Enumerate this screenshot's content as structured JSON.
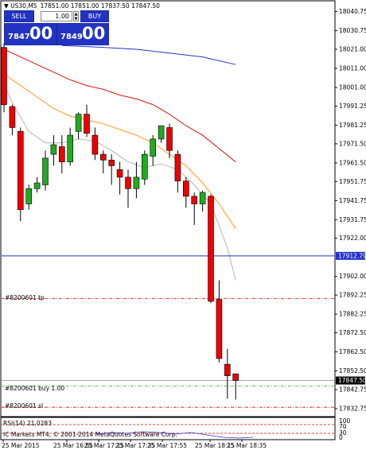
{
  "header": {
    "symbol": "US30,M5",
    "ohlc": "17851.00 17851.00 17837.50 17847.50"
  },
  "one_click": {
    "sell_label": "SELL",
    "buy_label": "BUY",
    "lot": "1.00",
    "sell_prefix": "7847",
    "sell_big": "00",
    "buy_prefix": "7849",
    "buy_big": "00"
  },
  "price_axis": {
    "labels": [
      "18040.75",
      "18030.75",
      "18021.00",
      "18011.00",
      "18001.00",
      "17991.25",
      "17981.25",
      "17971.50",
      "17961.50",
      "17951.75",
      "17941.75",
      "17931.75",
      "17922.00",
      "17902.00",
      "17892.25",
      "17882.25",
      "17872.50",
      "17862.50",
      "17852.50",
      "17842.75",
      "17832.75"
    ],
    "hline_label": "17912.79",
    "current_price": "17847.50"
  },
  "time_axis": {
    "labels": [
      "25 Mar 2015",
      "25 Mar 16:55",
      "25 Mar 17:15",
      "25 Mar 17:35",
      "25 Mar 17:55",
      "25 Mar 18:15",
      "25 Mar 18:35"
    ]
  },
  "orders": {
    "tp_label": "#8200601 tp",
    "buy_label": "#8200601 buy 1.00",
    "sl_label": "#8200601 sl"
  },
  "indicator": {
    "rsi_label": "RSI(14) 21.0283",
    "scale_top": "100",
    "scale_70": "70",
    "scale_30": "30",
    "scale_bottom": "0",
    "copyright": "IC Markets MT4, © 2001-2014 MetaQuotes Software Corp."
  },
  "colors": {
    "bull": "#22aa22",
    "bear": "#ee0000",
    "ma_red": "#dd1111",
    "ma_orange": "#ff9922",
    "ma_gray": "#b4b4b4",
    "ma_blue": "#2233cc",
    "hline": "#2233cc"
  },
  "chart_data": {
    "type": "candlestick",
    "candles": [
      {
        "o": 18022,
        "h": 18024,
        "c": 17992,
        "l": 17988
      },
      {
        "o": 17991,
        "h": 17992,
        "c": 17980,
        "l": 17976
      },
      {
        "o": 17978,
        "h": 17980,
        "c": 17937,
        "l": 17931
      },
      {
        "o": 17940,
        "h": 17950,
        "c": 17948,
        "l": 17937
      },
      {
        "o": 17948,
        "h": 17954,
        "c": 17951,
        "l": 17946
      },
      {
        "o": 17950,
        "h": 17968,
        "c": 17964,
        "l": 17947
      },
      {
        "o": 17966,
        "h": 17976,
        "c": 17971,
        "l": 17960
      },
      {
        "o": 17970,
        "h": 17976,
        "c": 17962,
        "l": 17956
      },
      {
        "o": 17962,
        "h": 17980,
        "c": 17976,
        "l": 17960
      },
      {
        "o": 17978,
        "h": 17988,
        "c": 17987,
        "l": 17974
      },
      {
        "o": 17987,
        "h": 17992,
        "c": 17977,
        "l": 17975
      },
      {
        "o": 17976,
        "h": 17980,
        "c": 17966,
        "l": 17963
      },
      {
        "o": 17966,
        "h": 17968,
        "c": 17963,
        "l": 17956
      },
      {
        "o": 17963,
        "h": 17966,
        "c": 17960,
        "l": 17950
      },
      {
        "o": 17958,
        "h": 17962,
        "c": 17954,
        "l": 17945
      },
      {
        "o": 17954,
        "h": 17958,
        "c": 17948,
        "l": 17938
      },
      {
        "o": 17948,
        "h": 17962,
        "c": 17954,
        "l": 17943
      },
      {
        "o": 17953,
        "h": 17968,
        "c": 17966,
        "l": 17950
      },
      {
        "o": 17965,
        "h": 17976,
        "c": 17974,
        "l": 17960
      },
      {
        "o": 17974,
        "h": 17980,
        "c": 17981,
        "l": 17972
      },
      {
        "o": 17980,
        "h": 17982,
        "c": 17968,
        "l": 17964
      },
      {
        "o": 17966,
        "h": 17968,
        "c": 17952,
        "l": 17946
      },
      {
        "o": 17952,
        "h": 17954,
        "c": 17944,
        "l": 17938
      },
      {
        "o": 17944,
        "h": 17946,
        "c": 17940,
        "l": 17929
      },
      {
        "o": 17940,
        "h": 17947,
        "c": 17946,
        "l": 17936
      },
      {
        "o": 17944,
        "h": 17945,
        "c": 17889,
        "l": 17888
      },
      {
        "o": 17890,
        "h": 17900,
        "c": 17859,
        "l": 17857
      },
      {
        "o": 17856,
        "h": 17864,
        "c": 17850,
        "l": 17838
      },
      {
        "o": 17851,
        "h": 17851,
        "c": 17847.5,
        "l": 17837.5
      }
    ],
    "ma_red": [
      [
        0,
        18021
      ],
      [
        2,
        18017
      ],
      [
        4,
        18013
      ],
      [
        6,
        18009
      ],
      [
        8,
        18005
      ],
      [
        10,
        18002
      ],
      [
        12,
        18000
      ],
      [
        14,
        17997
      ],
      [
        16,
        17995
      ],
      [
        18,
        17992
      ],
      [
        20,
        17987
      ],
      [
        22,
        17981
      ],
      [
        24,
        17976
      ],
      [
        26,
        17969
      ],
      [
        28,
        17962
      ]
    ],
    "ma_orange": [
      [
        0,
        18008
      ],
      [
        2,
        18002
      ],
      [
        4,
        17996
      ],
      [
        6,
        17990
      ],
      [
        8,
        17986
      ],
      [
        10,
        17984
      ],
      [
        12,
        17982
      ],
      [
        14,
        17979
      ],
      [
        16,
        17976
      ],
      [
        18,
        17972
      ],
      [
        20,
        17966
      ],
      [
        22,
        17960
      ],
      [
        24,
        17951
      ],
      [
        26,
        17940
      ],
      [
        28,
        17927
      ]
    ],
    "ma_gray": [
      [
        0,
        18003
      ],
      [
        1,
        17993
      ],
      [
        3,
        17978
      ],
      [
        5,
        17972
      ],
      [
        7,
        17972
      ],
      [
        9,
        17974
      ],
      [
        11,
        17973
      ],
      [
        13,
        17968
      ],
      [
        15,
        17962
      ],
      [
        17,
        17959
      ],
      [
        19,
        17961
      ],
      [
        21,
        17958
      ],
      [
        23,
        17950
      ],
      [
        25,
        17940
      ],
      [
        27,
        17917
      ],
      [
        28,
        17900
      ]
    ],
    "ma_blue": [
      [
        7,
        18023
      ],
      [
        12,
        18022
      ],
      [
        16,
        18021
      ],
      [
        20,
        18019
      ],
      [
        24,
        18017
      ],
      [
        28,
        18013
      ]
    ],
    "hline": 17912.79,
    "tp": 17890.5,
    "entry": 17844.5,
    "sl": 17833.5,
    "ylim": [
      17829,
      18046
    ]
  }
}
